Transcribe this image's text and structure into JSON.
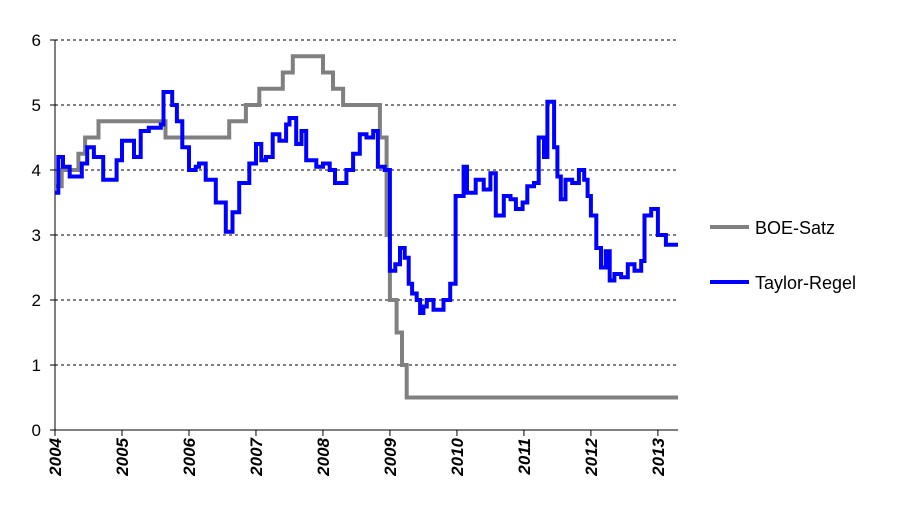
{
  "chart_data": {
    "type": "line",
    "title": "",
    "xlabel": "",
    "ylabel": "",
    "ylim": [
      0,
      6
    ],
    "xlim": [
      2004,
      2013.3
    ],
    "y_ticks": [
      "0",
      "1",
      "2",
      "3",
      "4",
      "5",
      "6"
    ],
    "x_ticks": [
      "2004",
      "2005",
      "2006",
      "2007",
      "2008",
      "2009",
      "2010",
      "2011",
      "2012",
      "2013"
    ],
    "grid": "horizontal dashed",
    "legend_position": "right",
    "colors": {
      "BOE-Satz": "#808080",
      "Taylor-Regel": "#0000ff"
    },
    "series": [
      {
        "name": "BOE-Satz",
        "step": true,
        "points": [
          [
            2004.0,
            3.75
          ],
          [
            2004.1,
            4.0
          ],
          [
            2004.35,
            4.25
          ],
          [
            2004.45,
            4.5
          ],
          [
            2004.65,
            4.75
          ],
          [
            2005.65,
            4.5
          ],
          [
            2006.6,
            4.75
          ],
          [
            2006.85,
            5.0
          ],
          [
            2007.05,
            5.25
          ],
          [
            2007.4,
            5.5
          ],
          [
            2007.55,
            5.75
          ],
          [
            2008.0,
            5.5
          ],
          [
            2008.15,
            5.25
          ],
          [
            2008.3,
            5.0
          ],
          [
            2008.85,
            4.5
          ],
          [
            2008.95,
            3.0
          ],
          [
            2009.0,
            2.0
          ],
          [
            2009.1,
            1.5
          ],
          [
            2009.18,
            1.0
          ],
          [
            2009.25,
            0.5
          ],
          [
            2013.3,
            0.5
          ]
        ]
      },
      {
        "name": "Taylor-Regel",
        "step": true,
        "points": [
          [
            2004.0,
            3.65
          ],
          [
            2004.05,
            4.2
          ],
          [
            2004.12,
            4.05
          ],
          [
            2004.22,
            3.9
          ],
          [
            2004.4,
            4.1
          ],
          [
            2004.48,
            4.35
          ],
          [
            2004.58,
            4.2
          ],
          [
            2004.72,
            3.85
          ],
          [
            2004.92,
            4.15
          ],
          [
            2005.0,
            4.45
          ],
          [
            2005.18,
            4.2
          ],
          [
            2005.28,
            4.6
          ],
          [
            2005.4,
            4.65
          ],
          [
            2005.58,
            4.7
          ],
          [
            2005.62,
            5.2
          ],
          [
            2005.75,
            5.0
          ],
          [
            2005.82,
            4.75
          ],
          [
            2005.9,
            4.35
          ],
          [
            2006.0,
            4.0
          ],
          [
            2006.1,
            4.05
          ],
          [
            2006.15,
            4.1
          ],
          [
            2006.25,
            3.85
          ],
          [
            2006.4,
            3.5
          ],
          [
            2006.55,
            3.05
          ],
          [
            2006.65,
            3.35
          ],
          [
            2006.75,
            3.8
          ],
          [
            2006.9,
            4.1
          ],
          [
            2007.0,
            4.4
          ],
          [
            2007.08,
            4.15
          ],
          [
            2007.15,
            4.2
          ],
          [
            2007.25,
            4.55
          ],
          [
            2007.35,
            4.45
          ],
          [
            2007.45,
            4.7
          ],
          [
            2007.5,
            4.8
          ],
          [
            2007.6,
            4.4
          ],
          [
            2007.68,
            4.6
          ],
          [
            2007.75,
            4.15
          ],
          [
            2007.9,
            4.05
          ],
          [
            2008.0,
            4.1
          ],
          [
            2008.1,
            4.0
          ],
          [
            2008.18,
            3.8
          ],
          [
            2008.35,
            4.0
          ],
          [
            2008.45,
            4.25
          ],
          [
            2008.55,
            4.55
          ],
          [
            2008.65,
            4.5
          ],
          [
            2008.75,
            4.6
          ],
          [
            2008.82,
            4.05
          ],
          [
            2008.92,
            4.0
          ],
          [
            2009.0,
            2.45
          ],
          [
            2009.08,
            2.55
          ],
          [
            2009.15,
            2.8
          ],
          [
            2009.22,
            2.65
          ],
          [
            2009.28,
            2.25
          ],
          [
            2009.33,
            2.1
          ],
          [
            2009.4,
            2.0
          ],
          [
            2009.45,
            1.8
          ],
          [
            2009.5,
            1.9
          ],
          [
            2009.55,
            2.0
          ],
          [
            2009.65,
            1.85
          ],
          [
            2009.8,
            2.0
          ],
          [
            2009.9,
            2.25
          ],
          [
            2009.98,
            3.6
          ],
          [
            2010.1,
            4.05
          ],
          [
            2010.15,
            3.65
          ],
          [
            2010.28,
            3.85
          ],
          [
            2010.4,
            3.7
          ],
          [
            2010.5,
            3.95
          ],
          [
            2010.58,
            3.3
          ],
          [
            2010.7,
            3.6
          ],
          [
            2010.8,
            3.55
          ],
          [
            2010.88,
            3.4
          ],
          [
            2010.98,
            3.5
          ],
          [
            2011.05,
            3.75
          ],
          [
            2011.15,
            3.8
          ],
          [
            2011.22,
            4.5
          ],
          [
            2011.3,
            4.2
          ],
          [
            2011.35,
            5.05
          ],
          [
            2011.45,
            4.35
          ],
          [
            2011.5,
            3.9
          ],
          [
            2011.55,
            3.55
          ],
          [
            2011.62,
            3.85
          ],
          [
            2011.72,
            3.8
          ],
          [
            2011.82,
            4.0
          ],
          [
            2011.9,
            3.85
          ],
          [
            2011.95,
            3.6
          ],
          [
            2012.0,
            3.3
          ],
          [
            2012.08,
            2.8
          ],
          [
            2012.15,
            2.5
          ],
          [
            2012.22,
            2.75
          ],
          [
            2012.28,
            2.3
          ],
          [
            2012.35,
            2.4
          ],
          [
            2012.45,
            2.35
          ],
          [
            2012.55,
            2.55
          ],
          [
            2012.65,
            2.45
          ],
          [
            2012.75,
            2.6
          ],
          [
            2012.8,
            3.3
          ],
          [
            2012.9,
            3.4
          ],
          [
            2013.0,
            3.0
          ],
          [
            2013.12,
            2.85
          ],
          [
            2013.3,
            2.85
          ]
        ]
      }
    ]
  }
}
